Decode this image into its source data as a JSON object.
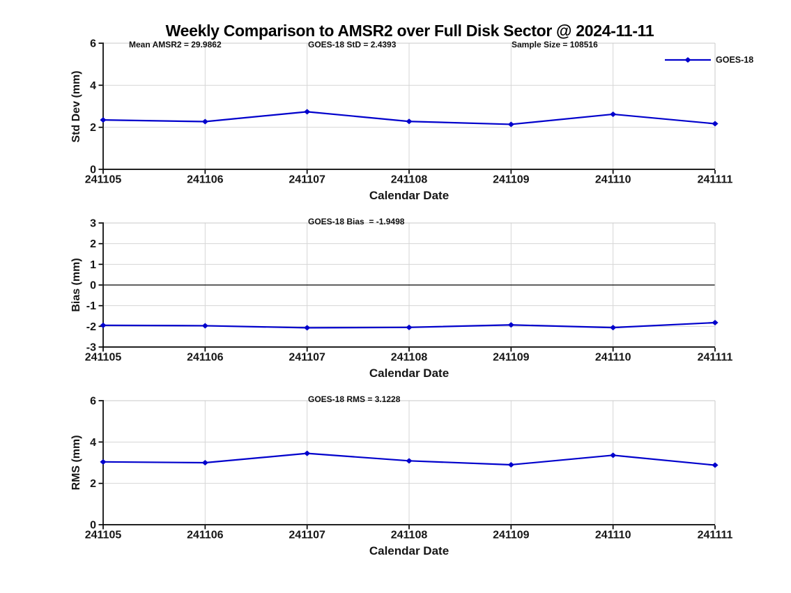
{
  "title": "Weekly Comparison to AMSR2 over Full Disk Sector @ 2024-11-11",
  "accent_color": "#0000cc",
  "chart_data": [
    {
      "type": "line",
      "categories": [
        "241105",
        "241106",
        "241107",
        "241108",
        "241109",
        "241110",
        "241111"
      ],
      "series": [
        {
          "name": "GOES-18",
          "color": "#0000cc",
          "values": [
            2.35,
            2.27,
            2.74,
            2.28,
            2.14,
            2.62,
            2.17
          ]
        }
      ],
      "title": "",
      "xlabel": "Calendar Date",
      "ylabel": "Std Dev (mm)",
      "ylim": [
        0,
        6
      ],
      "yticks": [
        0,
        2,
        4,
        6
      ],
      "grid": true,
      "zero_line": false,
      "annotations": [
        "Mean AMSR2 = 29.9862",
        "GOES-18 StD = 2.4393",
        "Sample Size = 108516"
      ],
      "legend": {
        "label": "GOES-18",
        "position": "top-right"
      }
    },
    {
      "type": "line",
      "categories": [
        "241105",
        "241106",
        "241107",
        "241108",
        "241109",
        "241110",
        "241111"
      ],
      "series": [
        {
          "name": "GOES-18",
          "color": "#0000cc",
          "values": [
            -1.95,
            -1.97,
            -2.07,
            -2.05,
            -1.93,
            -2.06,
            -1.82
          ]
        }
      ],
      "title": "",
      "xlabel": "Calendar Date",
      "ylabel": "Bias (mm)",
      "ylim": [
        -3,
        3
      ],
      "yticks": [
        -3,
        -2,
        -1,
        0,
        1,
        2,
        3
      ],
      "grid": true,
      "zero_line": true,
      "annotations": [
        "GOES-18 Bias  = -1.9498"
      ]
    },
    {
      "type": "line",
      "categories": [
        "241105",
        "241106",
        "241107",
        "241108",
        "241109",
        "241110",
        "241111"
      ],
      "series": [
        {
          "name": "GOES-18",
          "color": "#0000cc",
          "values": [
            3.04,
            3.0,
            3.45,
            3.09,
            2.9,
            3.36,
            2.88
          ]
        }
      ],
      "title": "",
      "xlabel": "Calendar Date",
      "ylabel": "RMS (mm)",
      "ylim": [
        0,
        6
      ],
      "yticks": [
        0,
        2,
        4,
        6
      ],
      "grid": true,
      "zero_line": false,
      "annotations": [
        "GOES-18 RMS = 3.1228"
      ]
    }
  ]
}
